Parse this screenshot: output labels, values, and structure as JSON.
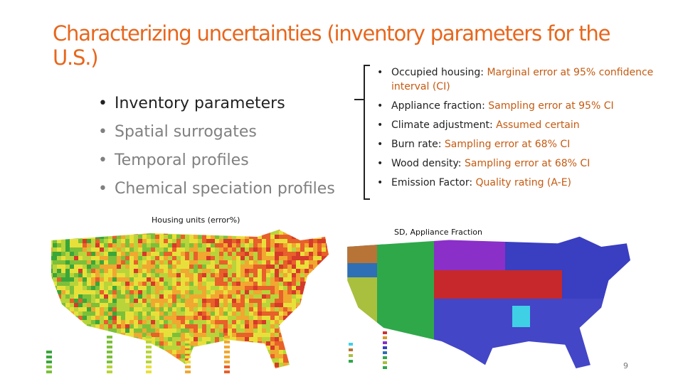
{
  "title": "Characterizing uncertainties (inventory parameters for the U.S.)",
  "left_list": [
    "Inventory parameters",
    "Spatial surrogates",
    "Temporal profiles",
    "Chemical speciation profiles"
  ],
  "right_list": [
    {
      "label": "Occupied housing:",
      "text": "Marginal error at 95% confidence interval (CI)"
    },
    {
      "label": "Appliance fraction:",
      "text": "Sampling error at 95% CI"
    },
    {
      "label": "Climate adjustment:",
      "text": "Assumed certain"
    },
    {
      "label": "Burn rate:",
      "text": "Sampling error at 68% CI"
    },
    {
      "label": "Wood density:",
      "text": "Sampling error at 68% CI"
    },
    {
      "label": "Emission Factor:",
      "text": "Quality rating (A-E)"
    }
  ],
  "maps": [
    {
      "caption": "Housing units (error%)"
    },
    {
      "caption": "SD, Appliance Fraction"
    }
  ],
  "page_number": "9"
}
